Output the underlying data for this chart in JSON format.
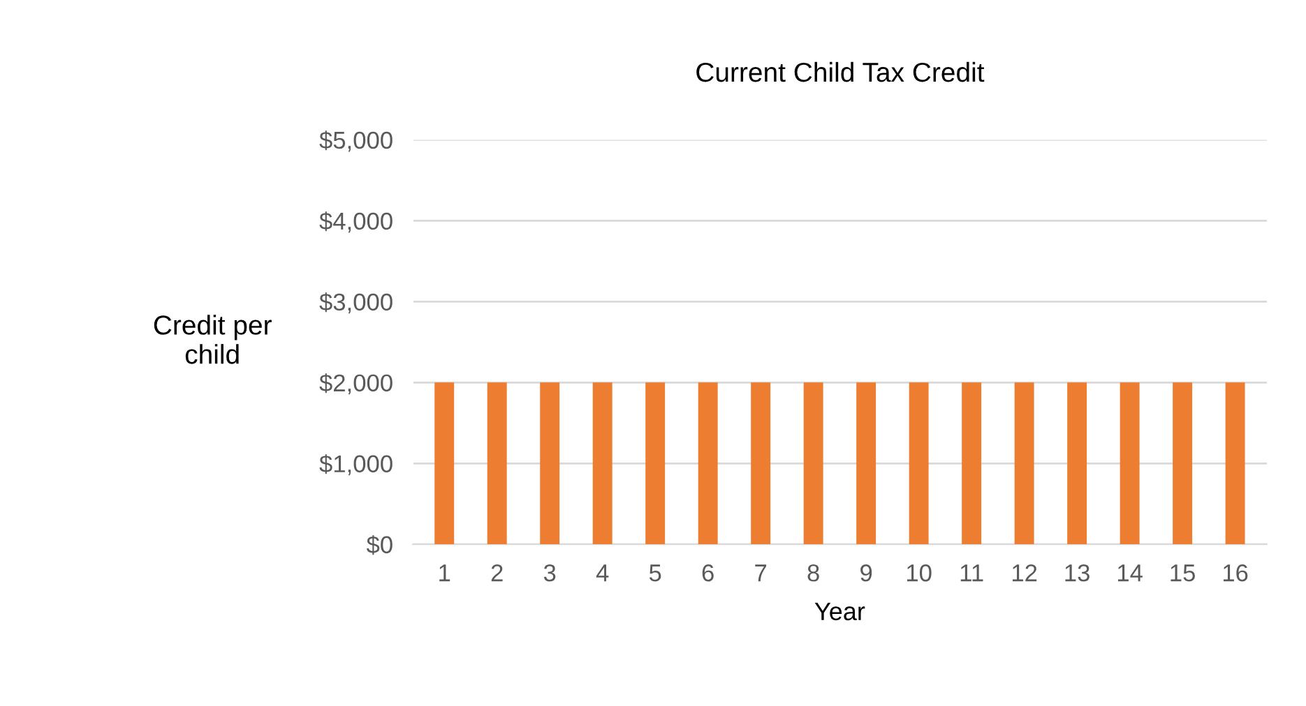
{
  "chart_data": {
    "type": "bar",
    "title": "Current Child Tax Credit",
    "xlabel": "Year",
    "ylabel": "Credit per\nchild",
    "categories": [
      "1",
      "2",
      "3",
      "4",
      "5",
      "6",
      "7",
      "8",
      "9",
      "10",
      "11",
      "12",
      "13",
      "14",
      "15",
      "16"
    ],
    "values": [
      2000,
      2000,
      2000,
      2000,
      2000,
      2000,
      2000,
      2000,
      2000,
      2000,
      2000,
      2000,
      2000,
      2000,
      2000,
      2000
    ],
    "color": "#ed7d31",
    "ylim": [
      0,
      5000
    ],
    "yticks": [
      {
        "value": 0,
        "label": "$0"
      },
      {
        "value": 1000,
        "label": "$1,000"
      },
      {
        "value": 2000,
        "label": "$2,000"
      },
      {
        "value": 3000,
        "label": "$3,000"
      },
      {
        "value": 4000,
        "label": "$4,000"
      },
      {
        "value": 5000,
        "label": "$5,000"
      }
    ],
    "grid": "y"
  }
}
